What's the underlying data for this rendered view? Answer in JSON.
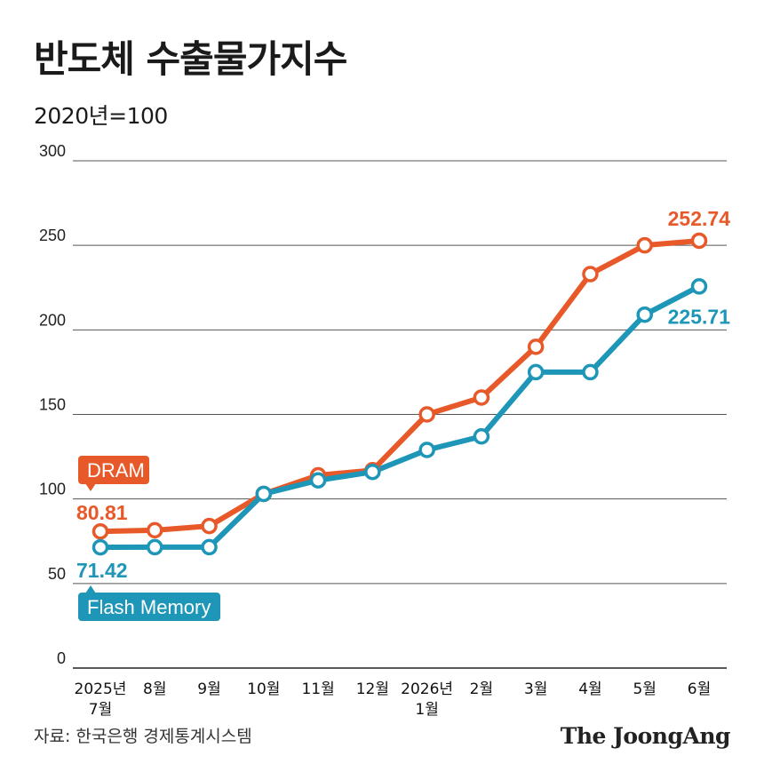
{
  "header": {
    "title": "반도체 수출물가지수",
    "subtitle": "2020년=100"
  },
  "footer": {
    "source": "자료: 한국은행 경제통계시스템",
    "brand": "The JoongAng"
  },
  "colors": {
    "dram": "#e8592a",
    "flash": "#1e96b8",
    "grid": "#555555"
  },
  "chart_data": {
    "type": "line",
    "title": "반도체 수출물가지수",
    "subtitle": "2020년=100",
    "categories": [
      "2025년\n7월",
      "8월",
      "9월",
      "10월",
      "11월",
      "12월",
      "2026년\n1월",
      "2월",
      "3월",
      "4월",
      "5월",
      "6월"
    ],
    "ylim": [
      0,
      300
    ],
    "yticks": [
      0,
      50,
      100,
      150,
      200,
      250,
      300
    ],
    "grid": true,
    "series": [
      {
        "name": "DRAM",
        "color": "#e8592a",
        "values": [
          80.81,
          81.5,
          84,
          103,
          114,
          117,
          150,
          160,
          190,
          233,
          250,
          252.74
        ],
        "start_label": "80.81",
        "end_label": "252.74"
      },
      {
        "name": "Flash Memory",
        "color": "#1e96b8",
        "values": [
          71.42,
          71.5,
          71.5,
          103,
          111,
          116,
          129,
          137,
          175,
          175,
          209,
          225.71
        ],
        "start_label": "71.42",
        "end_label": "225.71"
      }
    ]
  }
}
